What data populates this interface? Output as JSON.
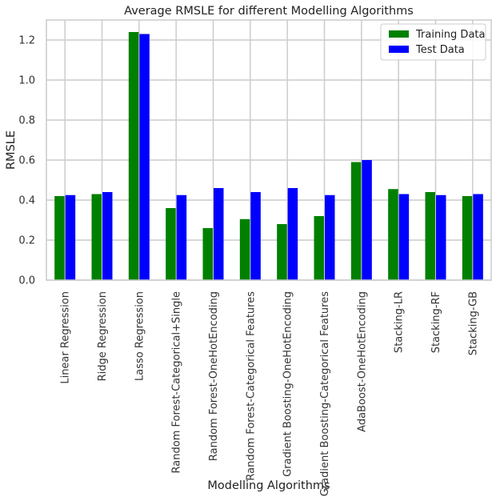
{
  "chart_data": {
    "type": "bar",
    "title": "Average RMSLE for different Modelling Algorithms",
    "xlabel": "Modelling Algorithms",
    "ylabel": "RMSLE",
    "ylim": [
      0,
      1.3
    ],
    "yticks": [
      "0.0",
      "0.2",
      "0.4",
      "0.6",
      "0.8",
      "1.0",
      "1.2"
    ],
    "grid": true,
    "legend_position": "top-right",
    "categories": [
      "Linear Regression",
      "Ridge Regression",
      "Lasso Regression",
      "Random Forest-Categorical+Single",
      "Random Forest-OneHotEncoding",
      "Random Forest-Categorical Features",
      "Gradient Boosting-OneHotEncoding",
      "Gradient Boosting-Categorical Features",
      "AdaBoost-OneHotEncoding",
      "Stacking-LR",
      "Stacking-RF",
      "Stacking-GB"
    ],
    "series": [
      {
        "name": "Training Data",
        "color": "#008000",
        "values": [
          0.42,
          0.43,
          1.24,
          0.36,
          0.26,
          0.305,
          0.28,
          0.32,
          0.59,
          0.455,
          0.44,
          0.42
        ]
      },
      {
        "name": "Test Data",
        "color": "#0000ff",
        "values": [
          0.425,
          0.44,
          1.23,
          0.425,
          0.46,
          0.44,
          0.46,
          0.425,
          0.6,
          0.43,
          0.425,
          0.43
        ]
      }
    ]
  }
}
